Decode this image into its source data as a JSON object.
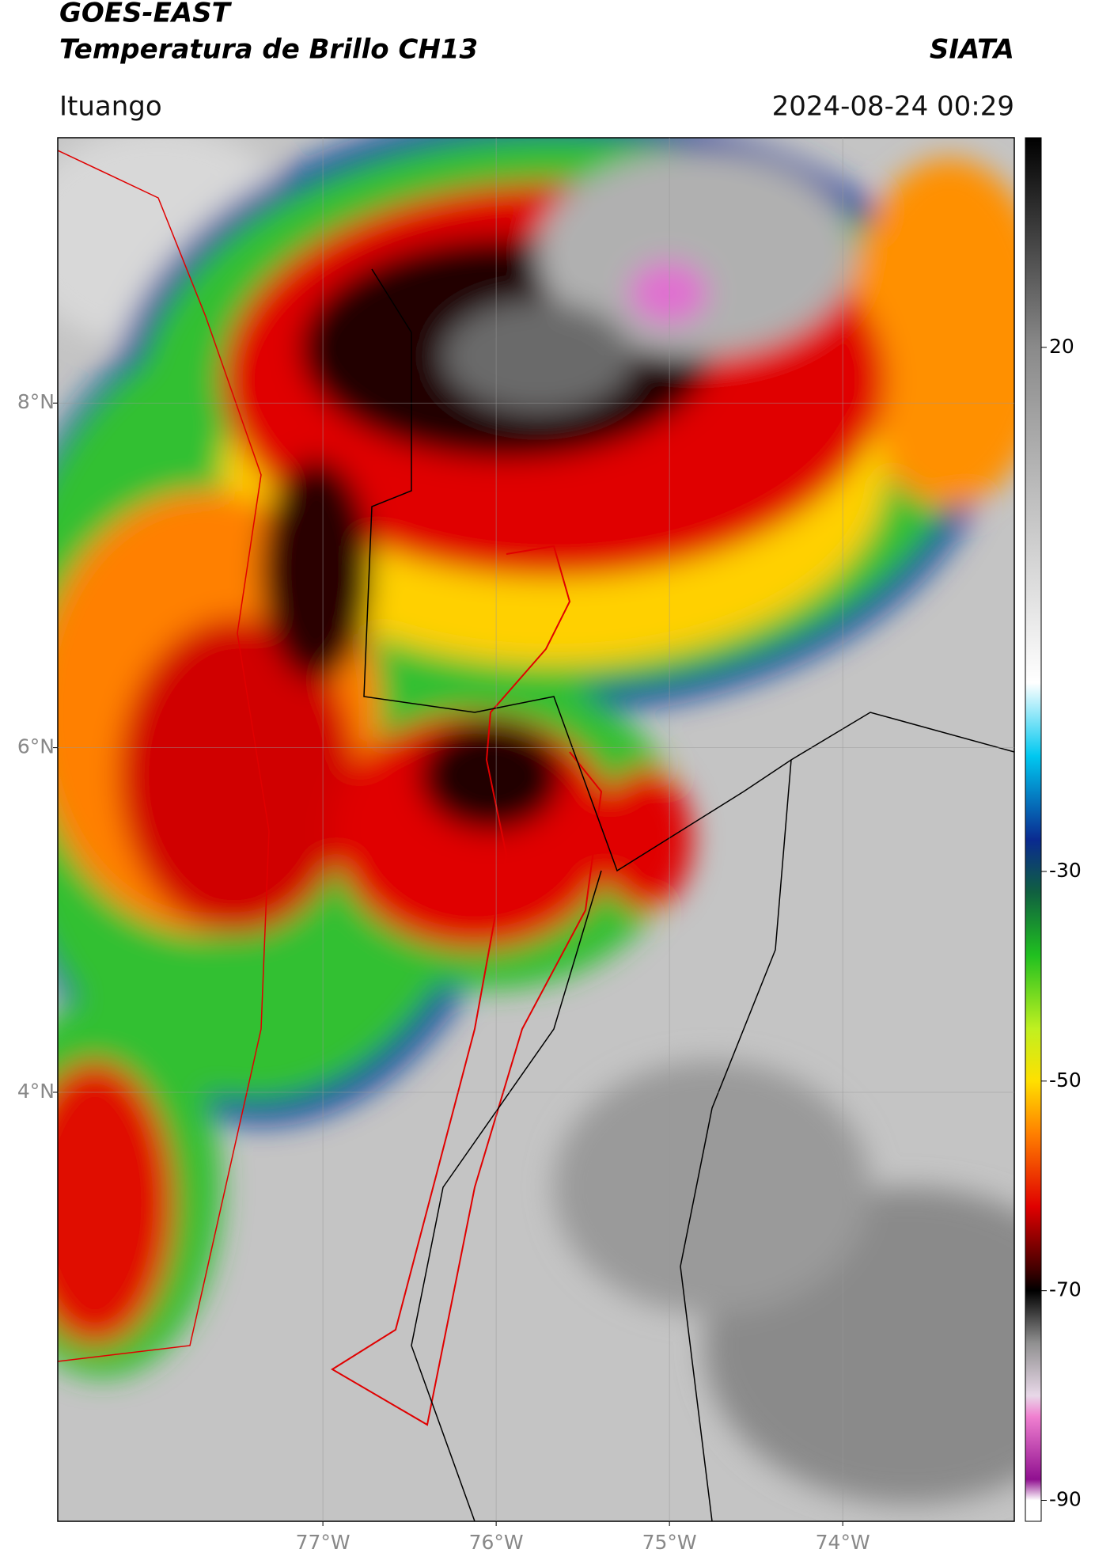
{
  "header": {
    "title": "GOES-EAST",
    "subtitle": "Temperatura de Brillo CH13",
    "source": "SIATA",
    "location": "Ituango",
    "datetime": "2024-08-24 00:29"
  },
  "map": {
    "xlim": [
      -78.53,
      -73.01
    ],
    "ylim": [
      1.51,
      9.54
    ],
    "xticks": [
      {
        "value": -77,
        "label": "77°W"
      },
      {
        "value": -76,
        "label": "76°W"
      },
      {
        "value": -75,
        "label": "75°W"
      },
      {
        "value": -74,
        "label": "74°W"
      }
    ],
    "yticks": [
      {
        "value": 4,
        "label": "4°N"
      },
      {
        "value": 6,
        "label": "6°N"
      },
      {
        "value": 8,
        "label": "8°N"
      }
    ]
  },
  "colorbar": {
    "lim": [
      -92,
      40
    ],
    "ticks": [
      20,
      -30,
      -50,
      -70,
      -90
    ],
    "colormap": [
      {
        "value": 40,
        "color": "#000000"
      },
      {
        "value": 20,
        "color": "#8a8a8a"
      },
      {
        "value": -12,
        "color": "#ffffff"
      },
      {
        "value": -19,
        "color": "#00c8f0"
      },
      {
        "value": -27,
        "color": "#0a2a90"
      },
      {
        "value": -32,
        "color": "#106040"
      },
      {
        "value": -38,
        "color": "#20c020"
      },
      {
        "value": -45,
        "color": "#c0f020"
      },
      {
        "value": -50,
        "color": "#ffe000"
      },
      {
        "value": -55,
        "color": "#ff8000"
      },
      {
        "value": -62,
        "color": "#e00000"
      },
      {
        "value": -68,
        "color": "#400000"
      },
      {
        "value": -70,
        "color": "#000000"
      },
      {
        "value": -75,
        "color": "#909090"
      },
      {
        "value": -80,
        "color": "#e8d8e8"
      },
      {
        "value": -82,
        "color": "#f080d0"
      },
      {
        "value": -88,
        "color": "#901090"
      },
      {
        "value": -90,
        "color": "#ffffff"
      }
    ]
  }
}
